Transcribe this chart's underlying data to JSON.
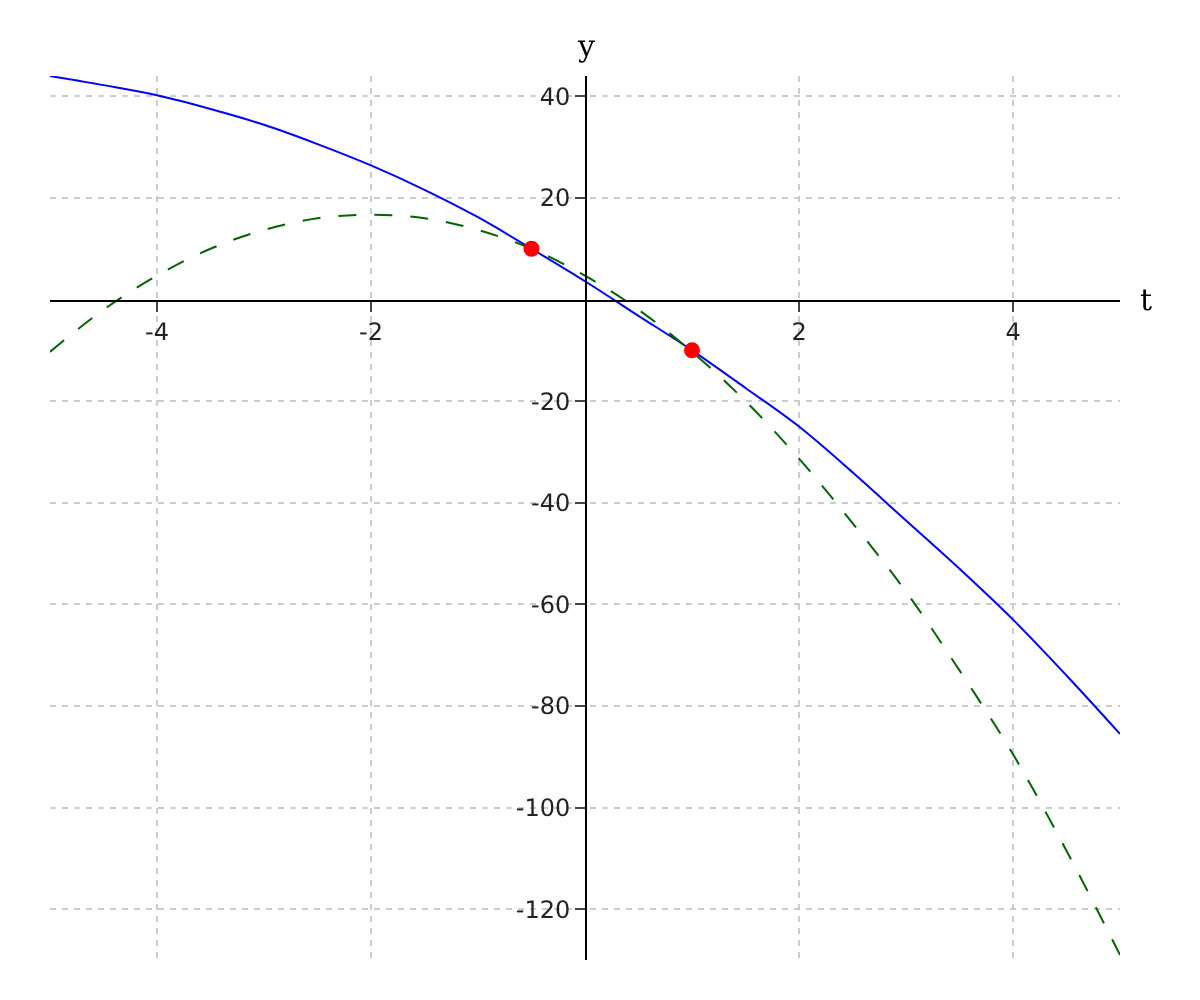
{
  "chart_data": {
    "type": "line",
    "xlabel": "t",
    "ylabel": "y",
    "x": [
      -5,
      -4.5,
      -4,
      -3.5,
      -3,
      -2.5,
      -2,
      -1.5,
      -1,
      -0.5,
      0,
      0.5,
      1,
      1.5,
      2,
      2.5,
      3,
      3.5,
      4,
      4.5,
      5
    ],
    "series": [
      {
        "color": "#0000ff",
        "line_style": "solid",
        "values": [
          44,
          42.2,
          40.2,
          37.5,
          34.4,
          30.6,
          26.4,
          21.6,
          16.2,
          10,
          3.6,
          -3.2,
          -10,
          -17.4,
          -25,
          -34,
          -43.5,
          -53,
          -63,
          -74,
          -85.5
        ]
      },
      {
        "color": "#006400",
        "line_style": "dashed",
        "values": [
          -10.3,
          -2,
          4.7,
          10,
          13.7,
          16,
          16.7,
          16,
          13.7,
          10,
          4.7,
          -2,
          -10.3,
          -20,
          -31.3,
          -44,
          -57.5,
          -73,
          -89.5,
          -108.5,
          -129
        ]
      },
      {
        "type": "scatter",
        "color": "#ff0000",
        "marker": "circle",
        "x": [
          -0.5,
          1
        ],
        "values": [
          10,
          -10
        ]
      }
    ],
    "xlim": [
      -5,
      5
    ],
    "ylim": [
      -130,
      44
    ],
    "xticks": [
      -4,
      -2,
      2,
      4
    ],
    "yticks": [
      40,
      20,
      -20,
      -40,
      -60,
      -80,
      -100,
      -120
    ],
    "grid": true,
    "legend": false
  }
}
